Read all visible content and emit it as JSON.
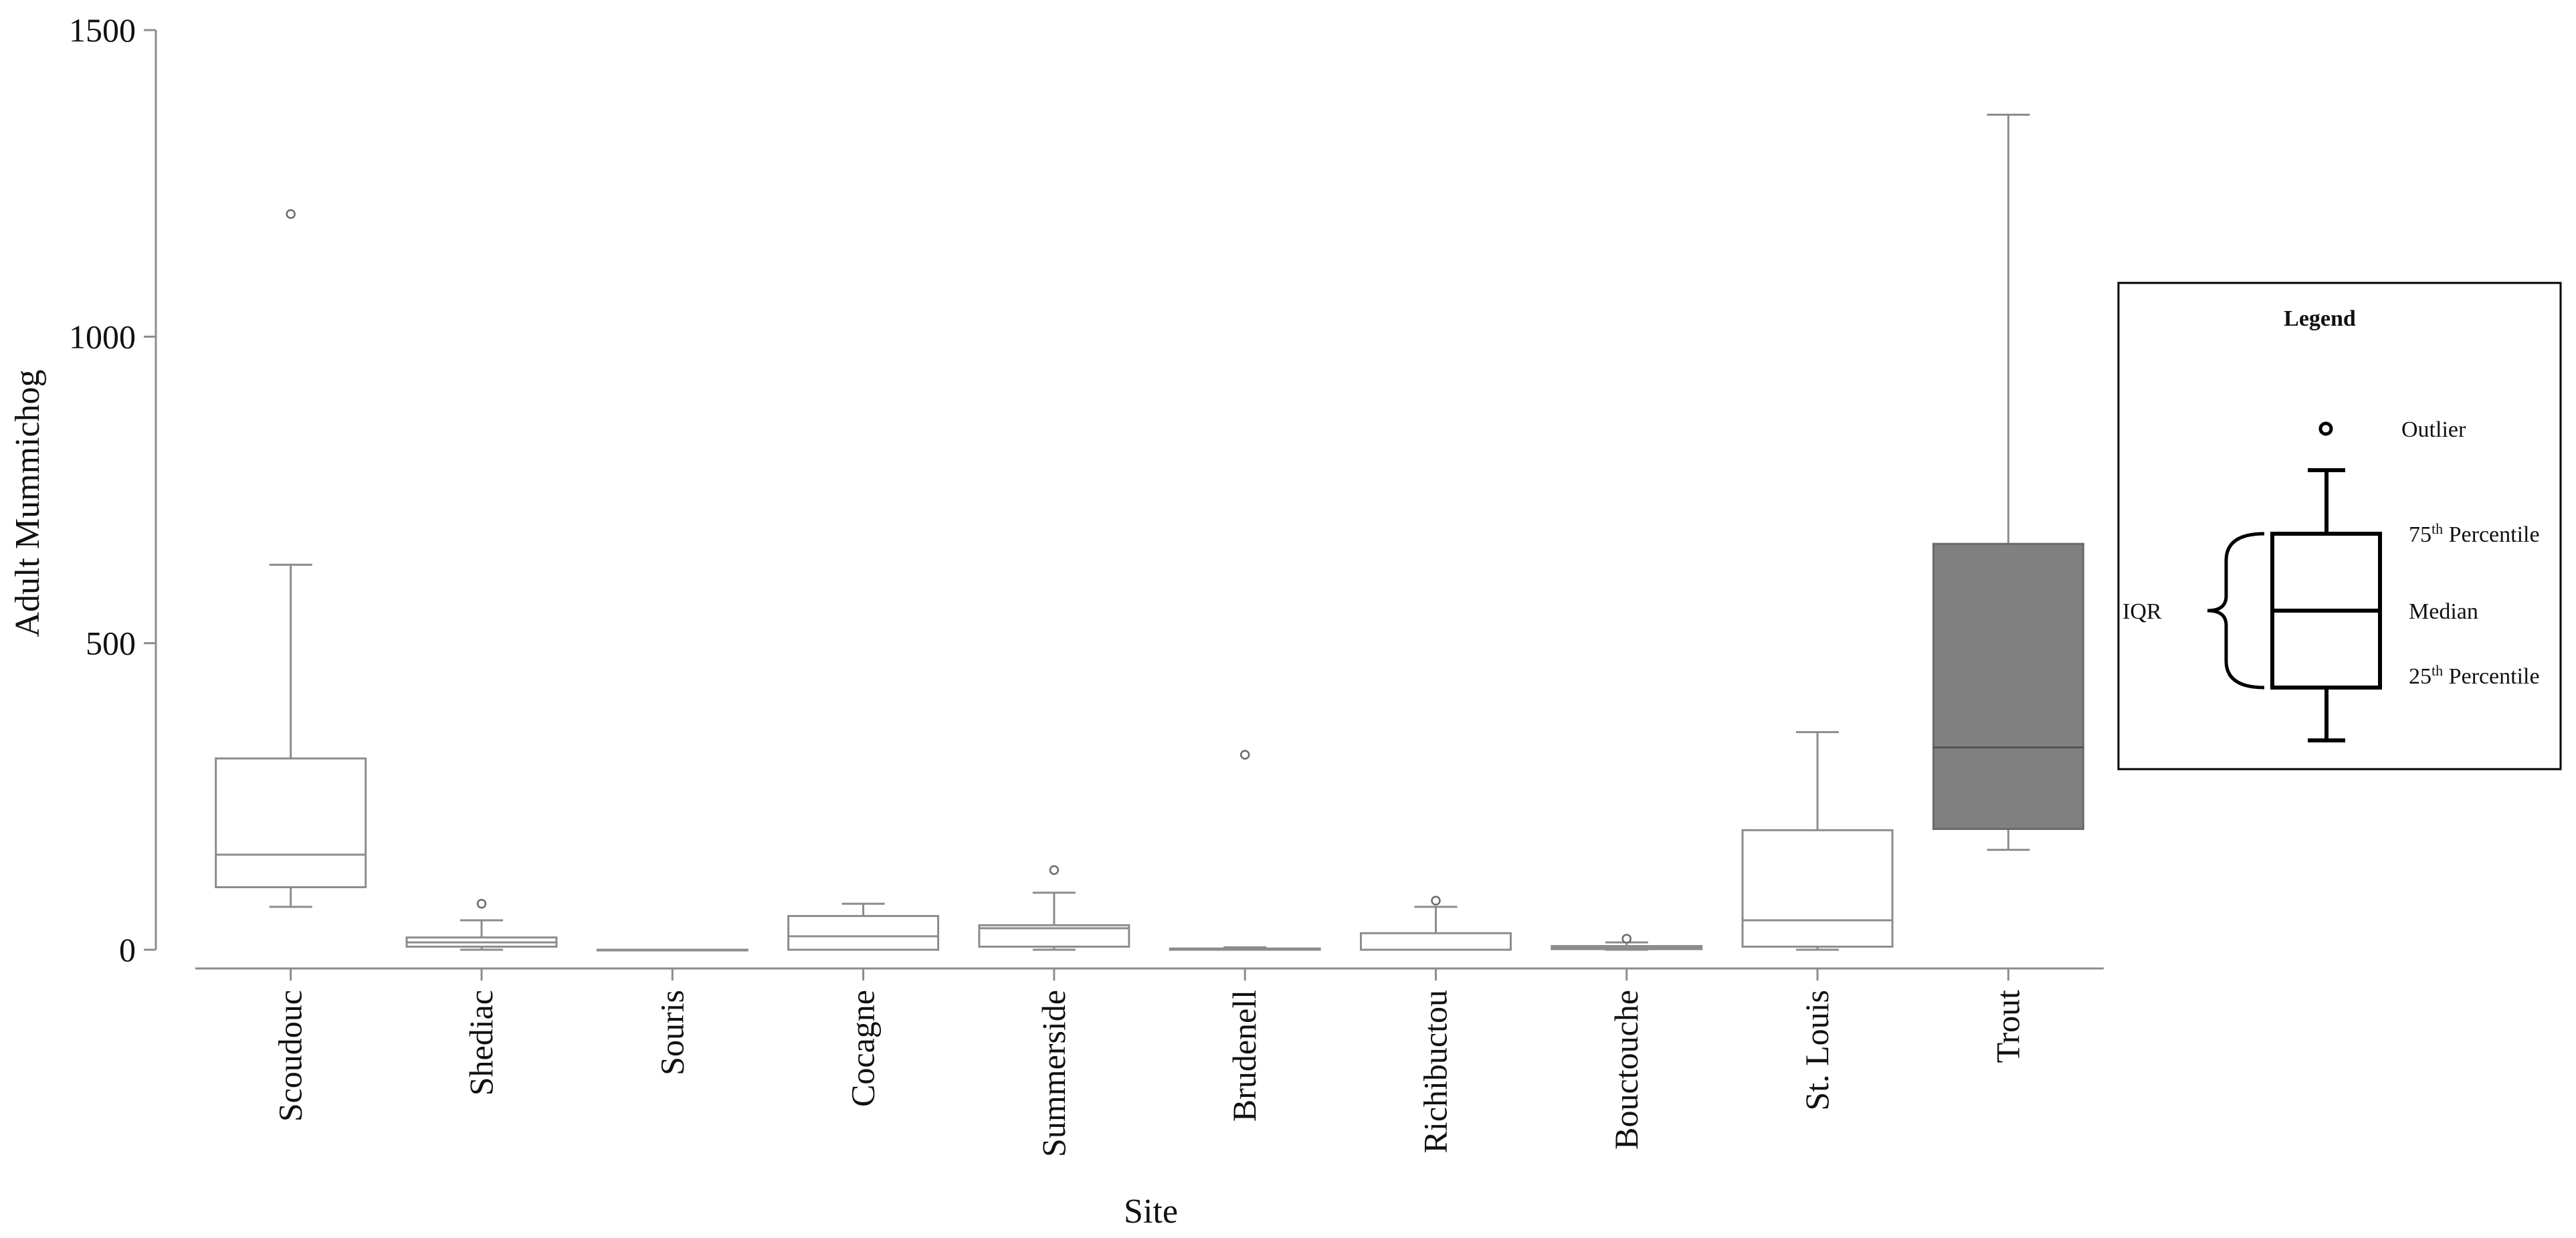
{
  "chart_data": {
    "type": "boxplot",
    "xlabel": "Site",
    "ylabel": "Adult Mummichog",
    "ylim": [
      0,
      1500
    ],
    "yticks": [
      0,
      500,
      1000,
      1500
    ],
    "grid": false,
    "categories": [
      "Scoudouc",
      "Shediac",
      "Souris",
      "Cocagne",
      "Summerside",
      "Brudenell",
      "Richibuctou",
      "Bouctouche",
      "St. Louis",
      "Trout"
    ],
    "boxes": [
      {
        "category": "Scoudouc",
        "min": 70,
        "q1": 102,
        "median": 155,
        "q3": 312,
        "max": 628,
        "outliers": [
          1200
        ],
        "fill": "#ffffff"
      },
      {
        "category": "Shediac",
        "min": 0,
        "q1": 5,
        "median": 12,
        "q3": 20,
        "max": 48,
        "outliers": [
          75
        ],
        "fill": "#ffffff"
      },
      {
        "category": "Souris",
        "min": 0,
        "q1": 0,
        "median": 0,
        "q3": 0,
        "max": 0,
        "outliers": [],
        "fill": "#ffffff"
      },
      {
        "category": "Cocagne",
        "min": 0,
        "q1": 0,
        "median": 22,
        "q3": 55,
        "max": 75,
        "outliers": [],
        "fill": "#ffffff"
      },
      {
        "category": "Summerside",
        "min": 0,
        "q1": 5,
        "median": 35,
        "q3": 40,
        "max": 93,
        "outliers": [
          130
        ],
        "fill": "#ffffff"
      },
      {
        "category": "Brudenell",
        "min": 0,
        "q1": 0,
        "median": 0,
        "q3": 2,
        "max": 4,
        "outliers": [
          318
        ],
        "fill": "#ffffff"
      },
      {
        "category": "Richibuctou",
        "min": 0,
        "q1": 0,
        "median": 0,
        "q3": 27,
        "max": 70,
        "outliers": [
          80
        ],
        "fill": "#ffffff"
      },
      {
        "category": "Bouctouche",
        "min": 0,
        "q1": 1,
        "median": 3,
        "q3": 6,
        "max": 12,
        "outliers": [
          18
        ],
        "fill": "#ffffff"
      },
      {
        "category": "St. Louis",
        "min": 0,
        "q1": 5,
        "median": 48,
        "q3": 195,
        "max": 355,
        "outliers": [],
        "fill": "#ffffff"
      },
      {
        "category": "Trout",
        "min": 163,
        "q1": 197,
        "median": 330,
        "q3": 662,
        "max": 1362,
        "outliers": [],
        "fill": "#808080"
      }
    ],
    "legend": {
      "title": "Legend",
      "position": "right",
      "outlier_label": "Outlier",
      "p75_label": {
        "num": "75",
        "sup": "th",
        "rest": " Percentile"
      },
      "median_label": "Median",
      "p25_label": {
        "num": "25",
        "sup": "th",
        "rest": " Percentile"
      },
      "iqr_label": "IQR"
    }
  },
  "colors": {
    "plot_line": "#8c8c8c",
    "text": "#111111",
    "legend_line": "#000000",
    "trout_fill": "#808080"
  }
}
